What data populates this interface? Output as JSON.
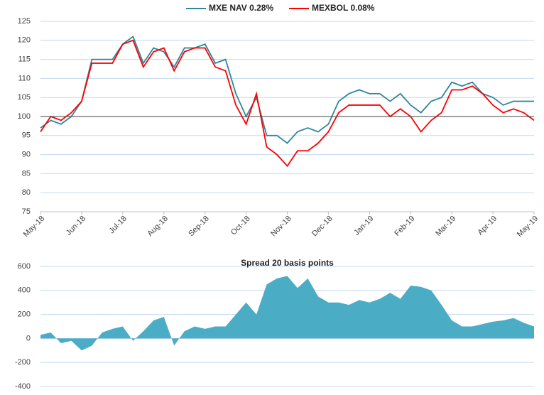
{
  "chart_data": [
    {
      "type": "line",
      "legend": "top",
      "grid": true,
      "ref_line": 100,
      "xlim": [
        0,
        12
      ],
      "xticks": [
        {
          "value": 0,
          "label": "May-18"
        },
        {
          "value": 1,
          "label": "Jun-18"
        },
        {
          "value": 2,
          "label": "Jul-18"
        },
        {
          "value": 3,
          "label": "Aug-18"
        },
        {
          "value": 4,
          "label": "Sep-18"
        },
        {
          "value": 5,
          "label": "Oct-18"
        },
        {
          "value": 6,
          "label": "Nov-18"
        },
        {
          "value": 7,
          "label": "Dec-18"
        },
        {
          "value": 8,
          "label": "Jan-19"
        },
        {
          "value": 9,
          "label": "Feb-19"
        },
        {
          "value": 10,
          "label": "Mar-19"
        },
        {
          "value": 11,
          "label": "Apr-19"
        },
        {
          "value": 12,
          "label": "May-19"
        }
      ],
      "ylim": [
        75,
        125
      ],
      "yticks": [
        75,
        80,
        85,
        90,
        95,
        100,
        105,
        110,
        115,
        120,
        125
      ],
      "x": [
        0,
        0.25,
        0.5,
        0.75,
        1,
        1.25,
        1.5,
        1.75,
        2,
        2.25,
        2.5,
        2.75,
        3,
        3.25,
        3.5,
        3.75,
        4,
        4.25,
        4.5,
        4.75,
        5,
        5.25,
        5.5,
        5.75,
        6,
        6.25,
        6.5,
        6.75,
        7,
        7.25,
        7.5,
        7.75,
        8,
        8.25,
        8.5,
        8.75,
        9,
        9.25,
        9.5,
        9.75,
        10,
        10.25,
        10.5,
        10.75,
        11,
        11.25,
        11.5,
        11.75,
        12
      ],
      "series": [
        {
          "name": "MXE NAV 0.28%",
          "color": "#31859c",
          "values": [
            97,
            99,
            98,
            100,
            104,
            115,
            115,
            115,
            119,
            121,
            114,
            118,
            117,
            113,
            118,
            118,
            119,
            114,
            115,
            106,
            100,
            105,
            95,
            95,
            93,
            96,
            97,
            96,
            98,
            104,
            106,
            107,
            106,
            106,
            104,
            106,
            103,
            101,
            104,
            105,
            109,
            108,
            109,
            106,
            105,
            103,
            104,
            104,
            104
          ]
        },
        {
          "name": "MEXBOL 0.08%",
          "color": "#ff0000",
          "values": [
            96,
            100,
            99,
            101,
            104,
            114,
            114,
            114,
            119,
            120,
            113,
            117,
            118,
            112,
            117,
            118,
            118,
            113,
            112,
            103,
            98,
            106,
            92,
            90,
            87,
            91,
            91,
            93,
            96,
            101,
            103,
            103,
            103,
            103,
            100,
            102,
            100,
            96,
            99,
            101,
            107,
            107,
            108,
            106,
            103,
            101,
            102,
            101,
            99
          ]
        }
      ]
    },
    {
      "type": "area",
      "title": "Spread 20 basis points",
      "grid": true,
      "color": "#4bacc6",
      "xlim": [
        0,
        12
      ],
      "ylim": [
        -400,
        600
      ],
      "yticks": [
        -400,
        -200,
        0,
        200,
        400,
        600
      ],
      "x": [
        0,
        0.25,
        0.5,
        0.75,
        1,
        1.25,
        1.5,
        1.75,
        2,
        2.25,
        2.5,
        2.75,
        3,
        3.25,
        3.5,
        3.75,
        4,
        4.25,
        4.5,
        4.75,
        5,
        5.25,
        5.5,
        5.75,
        6,
        6.25,
        6.5,
        6.75,
        7,
        7.25,
        7.5,
        7.75,
        8,
        8.25,
        8.5,
        8.75,
        9,
        9.25,
        9.5,
        9.75,
        10,
        10.25,
        10.5,
        10.75,
        11,
        11.25,
        11.5,
        11.75,
        12
      ],
      "values": [
        30,
        50,
        -40,
        -20,
        -100,
        -60,
        50,
        80,
        100,
        -20,
        60,
        150,
        180,
        -60,
        60,
        100,
        80,
        100,
        100,
        200,
        300,
        200,
        450,
        500,
        520,
        420,
        500,
        350,
        300,
        300,
        280,
        320,
        300,
        330,
        380,
        330,
        440,
        430,
        400,
        280,
        150,
        100,
        100,
        120,
        140,
        150,
        170,
        130,
        100
      ]
    }
  ]
}
